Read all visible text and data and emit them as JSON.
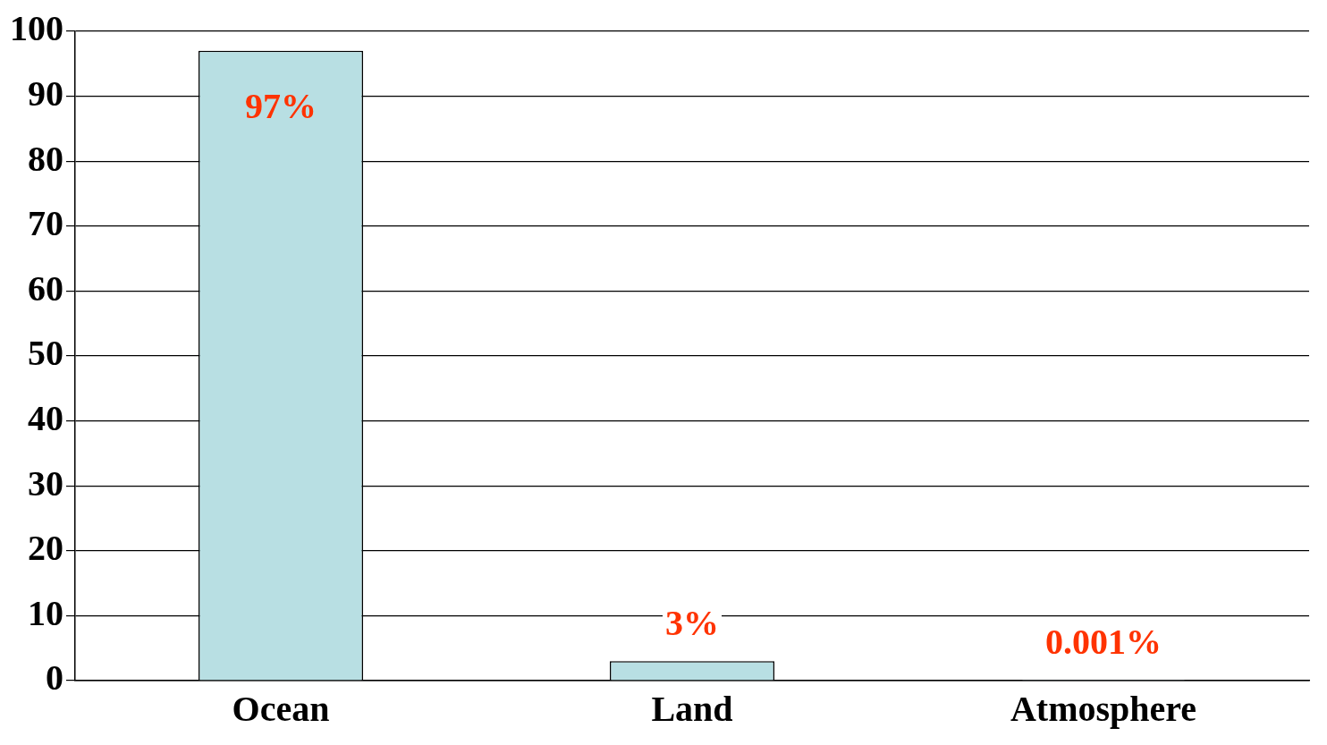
{
  "chart_data": {
    "type": "bar",
    "categories": [
      "Ocean",
      "Land",
      "Atmosphere"
    ],
    "values": [
      97,
      3,
      0.001
    ],
    "value_labels": [
      "97%",
      "3%",
      "0.001%"
    ],
    "color": "#b8dfe3",
    "ylim": [
      0,
      100
    ],
    "yticks": [
      0,
      10,
      20,
      30,
      40,
      50,
      60,
      70,
      80,
      90,
      100
    ],
    "grid": "y"
  }
}
